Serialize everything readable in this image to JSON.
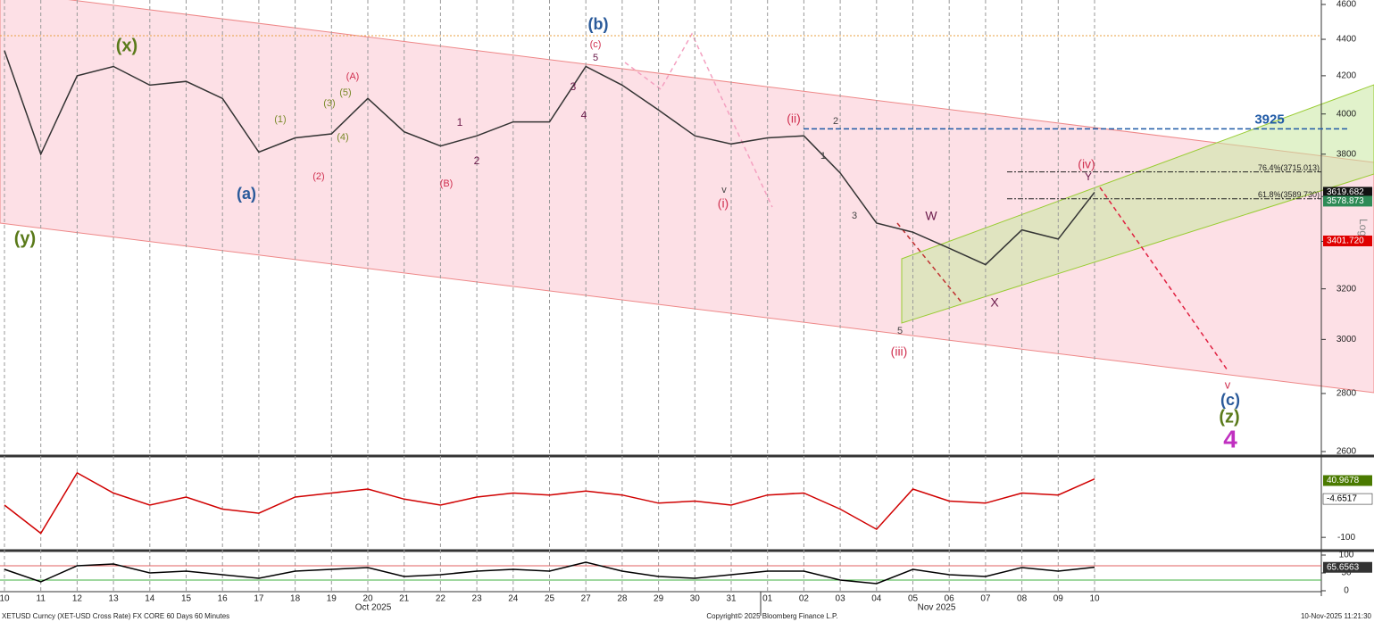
{
  "chart_data": [
    {
      "type": "line",
      "log_scale": true,
      "y_axis_label": "Log",
      "categories": [
        "10",
        "11",
        "12",
        "13",
        "14",
        "15",
        "16",
        "17",
        "18",
        "19",
        "20",
        "21",
        "22",
        "23",
        "24",
        "25",
        "27",
        "28",
        "29",
        "30",
        "31",
        "01",
        "02",
        "03",
        "04",
        "05",
        "06",
        "07",
        "08",
        "09",
        "10"
      ],
      "month_labels": [
        "Oct 2025",
        "Nov 2025"
      ],
      "series": [
        {
          "name": "XETUSD",
          "color": "#333333",
          "values": [
            4337,
            3800,
            4200,
            4250,
            4150,
            4170,
            4080,
            3810,
            3880,
            3900,
            4080,
            3910,
            3840,
            3890,
            3960,
            3960,
            4250,
            4150,
            4020,
            3890,
            3850,
            3880,
            3890,
            3710,
            3480,
            3440,
            3370,
            3300,
            3450,
            3410,
            3620
          ]
        }
      ],
      "ylim": [
        2600,
        4600
      ],
      "yticks": [
        2600,
        2800,
        3000,
        3200,
        3400,
        3600,
        3800,
        4000,
        4200,
        4400,
        4600
      ],
      "hlines": [
        {
          "value": 4420,
          "color": "#e8a040"
        }
      ],
      "levels": [
        {
          "value": 3925,
          "label": "3925",
          "color": "#1f5aa6"
        }
      ],
      "fib_levels": [
        {
          "value": 3715.013,
          "label": "76.4%(3715.013)"
        },
        {
          "value": 3589.73,
          "label": "61.8%(3589.730)"
        }
      ],
      "tags": [
        {
          "value": 3619.682,
          "label": "3619.682",
          "color": "#111111"
        },
        {
          "value": 3578.873,
          "label": "3578.873",
          "color": "#2e8b57"
        },
        {
          "value": 3401.72,
          "label": "3401.720",
          "color": "#e00000"
        }
      ],
      "annotations": [
        {
          "text": "(b)",
          "color": "#2a5a9a"
        },
        {
          "text": "(x)",
          "color": "#5a7a1a"
        },
        {
          "text": "(c)",
          "color": "#d03050"
        },
        {
          "text": "5",
          "color": "#6a1a4a"
        },
        {
          "text": "(y)",
          "color": "#5a7a1a"
        },
        {
          "text": "(a)",
          "color": "#2a5a9a"
        },
        {
          "text": "(1)",
          "color": "#7a8a2a"
        },
        {
          "text": "(2)",
          "color": "#d03050"
        },
        {
          "text": "(3)",
          "color": "#7a8a2a"
        },
        {
          "text": "(4)",
          "color": "#7a8a2a"
        },
        {
          "text": "(5)",
          "color": "#7a8a2a"
        },
        {
          "text": "(A)",
          "color": "#d03050"
        },
        {
          "text": "(B)",
          "color": "#d03050"
        },
        {
          "text": "1",
          "color": "#6a1a4a"
        },
        {
          "text": "2",
          "color": "#6a1a4a"
        },
        {
          "text": "3",
          "color": "#6a1a4a"
        },
        {
          "text": "4",
          "color": "#6a1a4a"
        },
        {
          "text": "(ii)",
          "color": "#d03050"
        },
        {
          "text": "2",
          "color": "#444444"
        },
        {
          "text": "1",
          "color": "#444444"
        },
        {
          "text": "v",
          "color": "#444444"
        },
        {
          "text": "(i)",
          "color": "#d03050"
        },
        {
          "text": "3",
          "color": "#444444"
        },
        {
          "text": "5",
          "color": "#444444"
        },
        {
          "text": "(iii)",
          "color": "#d03050"
        },
        {
          "text": "W",
          "color": "#6a1a4a"
        },
        {
          "text": "X",
          "color": "#6a1a4a"
        },
        {
          "text": "(iv)",
          "color": "#d03050"
        },
        {
          "text": "Y",
          "color": "#6a1a4a"
        },
        {
          "text": "v",
          "color": "#d03050"
        },
        {
          "text": "(c)",
          "color": "#2a5a9a"
        },
        {
          "text": "(z)",
          "color": "#5a7a1a"
        },
        {
          "text": "4",
          "color": "#c030c0"
        }
      ],
      "footer": {
        "ticker": "XETUSD Curncy (XET-USD Cross Rate) FX CORE 60 Days 60 Minutes",
        "copyright": "Copyright© 2025 Bloomberg Finance L.P.",
        "timestamp": "10-Nov-2025 11:21:30"
      }
    },
    {
      "type": "line",
      "series": [
        {
          "name": "MACD",
          "color": "#d00000",
          "values": [
            -20,
            -90,
            60,
            10,
            -20,
            0,
            -30,
            -40,
            0,
            10,
            20,
            -5,
            -20,
            0,
            10,
            5,
            15,
            5,
            -15,
            -10,
            -20,
            5,
            10,
            -30,
            -80,
            20,
            -10,
            -15,
            10,
            5,
            45
          ]
        }
      ],
      "ylim": [
        -124,
        93
      ],
      "yticks": [
        -100
      ],
      "tags": [
        {
          "value": 40.9678,
          "label": "40.9678",
          "color": "#4a7a00"
        },
        {
          "value": -4.6517,
          "label": "-4.6517",
          "color": "#ffffff"
        }
      ]
    },
    {
      "type": "line",
      "series": [
        {
          "name": "RSI",
          "color": "#000000",
          "values": [
            60,
            25,
            70,
            75,
            50,
            55,
            45,
            35,
            55,
            60,
            65,
            40,
            45,
            55,
            60,
            55,
            80,
            55,
            40,
            35,
            45,
            55,
            55,
            30,
            20,
            60,
            45,
            40,
            65,
            55,
            66
          ]
        }
      ],
      "ylim": [
        0,
        100
      ],
      "yticks": [
        0,
        50,
        100
      ],
      "hlines": [
        {
          "value": 70,
          "color": "#e06060"
        },
        {
          "value": 30,
          "color": "#40b040"
        }
      ],
      "tags": [
        {
          "value": 65.6563,
          "label": "65.6563",
          "color": "#333333"
        }
      ]
    }
  ]
}
